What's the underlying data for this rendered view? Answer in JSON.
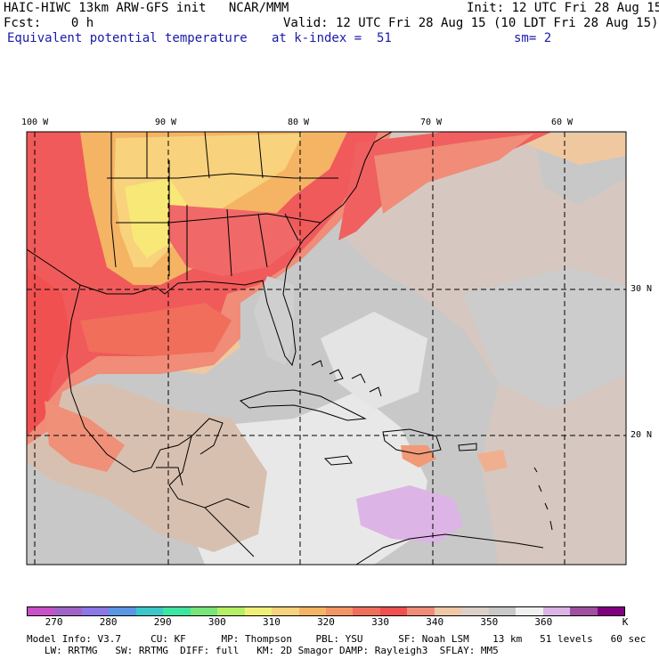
{
  "header": {
    "line1_left": "HAIC-HIWC 13km ARW-GFS init   NCAR/MMM",
    "line1_right": "Init: 12 UTC Fri 28 Aug 15",
    "line2_left": "Fcst:    0 h",
    "line2_right": "Valid: 12 UTC Fri 28 Aug 15 (10 LDT Fri 28 Aug 15)",
    "field_name": "Equivalent potential temperature",
    "level": "at k-index =  51",
    "smoothing": "sm= 2"
  },
  "map": {
    "lon_labels": [
      "100 W",
      "90 W",
      "80 W",
      "70 W",
      "60 W"
    ],
    "lat_labels": [
      "30 N",
      "20 N"
    ],
    "colors": {
      "ocean_gray": "#c8c8c8",
      "warm_gray": "#d6c8c0",
      "light_gray": "#e8e8e8",
      "lavender": "#dcb4e6",
      "tan": "#f0c8a0",
      "peach": "#f09a78",
      "salmon": "#f07864",
      "red": "#f05050",
      "orange": "#f4b464",
      "yellow_orange": "#f8d47c",
      "yellow": "#f8e878"
    }
  },
  "colorbar": {
    "colors": [
      "#c850c8",
      "#a064c8",
      "#8c78e6",
      "#5a96e6",
      "#3cc8c8",
      "#3ce6a0",
      "#78e678",
      "#b4f064",
      "#f0f078",
      "#f8d27c",
      "#f4b464",
      "#f49664",
      "#f06e5a",
      "#f05050",
      "#f08c78",
      "#f0c8a8",
      "#dcd0c8",
      "#c8c8c8",
      "#f0f0f0",
      "#dcb4e6",
      "#a050a0",
      "#800080"
    ],
    "tick_labels": [
      "270",
      "280",
      "290",
      "300",
      "310",
      "320",
      "330",
      "340",
      "350",
      "360",
      "K"
    ]
  },
  "footer": {
    "line1": "Model Info: V3.7     CU: KF      MP: Thompson    PBL: YSU      SF: Noah LSM    13 km   51 levels   60 sec",
    "line2": "   LW: RRTMG   SW: RRTMG  DIFF: full   KM: 2D Smagor DAMP: Rayleigh3  SFLAY: MM5"
  }
}
